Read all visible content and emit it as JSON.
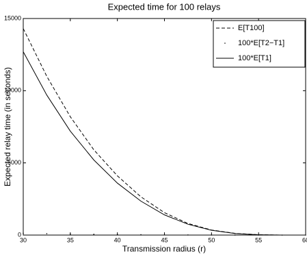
{
  "chart_data": {
    "type": "line",
    "title": "Expected time for 100 relays",
    "x_label": "Transmission radius (r)",
    "y_label": "Expected relay time (in seconds)",
    "x": [
      30,
      32.5,
      35,
      37.5,
      40,
      42.5,
      45,
      47.5,
      50,
      52.5,
      55,
      57.5,
      60
    ],
    "series": [
      {
        "name": "E[T100]",
        "color": "#000000",
        "style": "dashed",
        "values": [
          14300,
          11000,
          8200,
          5900,
          4100,
          2650,
          1550,
          800,
          350,
          120,
          25,
          0,
          0
        ]
      },
      {
        "name": "100*E[T2−T1]",
        "color": "#000000",
        "style": "dots",
        "values": [
          130,
          100,
          75,
          55,
          38,
          25,
          15,
          8,
          4,
          1,
          0,
          0,
          0
        ]
      },
      {
        "name": "100*E[T1]",
        "color": "#000000",
        "style": "solid",
        "values": [
          12700,
          9700,
          7200,
          5200,
          3600,
          2350,
          1400,
          750,
          330,
          110,
          20,
          0,
          0
        ]
      }
    ],
    "xlim": [
      30,
      60
    ],
    "xticks": [
      30,
      35,
      40,
      45,
      50,
      55,
      60
    ],
    "ylim": [
      0,
      15000
    ],
    "yticks": [
      0,
      5000,
      10000,
      15000
    ],
    "legend": "upper right"
  }
}
